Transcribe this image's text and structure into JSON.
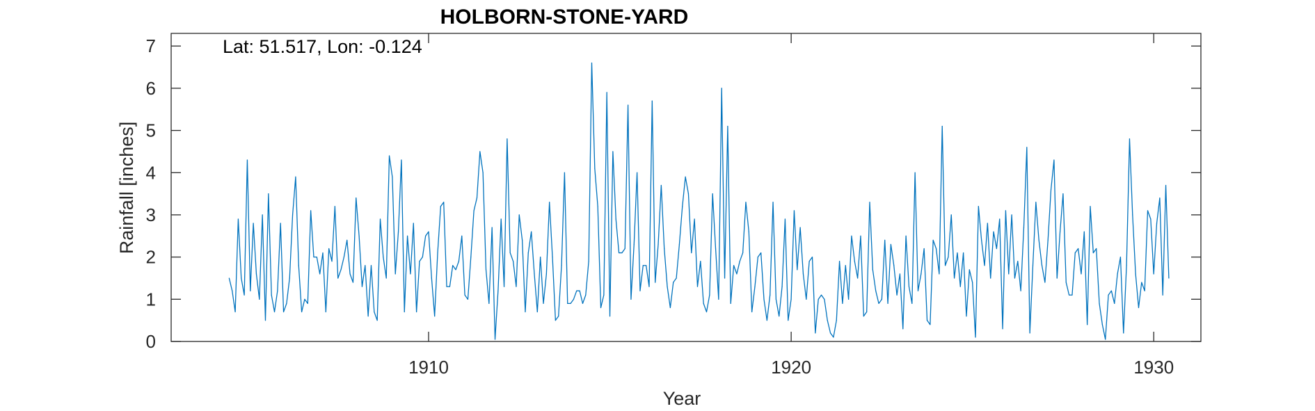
{
  "chart_data": {
    "type": "line",
    "title": "HOLBORN-STONE-YARD",
    "xlabel": "Year",
    "ylabel": "Rainfall [inches]",
    "annotation": "Lat: 51.517, Lon: -0.124",
    "xlim": [
      1902.9,
      1931.3
    ],
    "ylim": [
      0,
      7.3
    ],
    "x_ticks": [
      1910,
      1920,
      1930
    ],
    "y_ticks": [
      0,
      1,
      2,
      3,
      4,
      5,
      6,
      7
    ],
    "grid": false,
    "series_color": "#0072BD",
    "series": [
      {
        "x_start": 1904.5,
        "x_step": 0.08333,
        "values": [
          1.5,
          1.2,
          0.7,
          2.9,
          1.5,
          1.1,
          4.3,
          1.2,
          2.8,
          1.6,
          1.0,
          3.0,
          0.5,
          3.5,
          1.1,
          0.7,
          1.2,
          2.8,
          0.7,
          0.9,
          1.5,
          3.0,
          3.9,
          1.8,
          0.7,
          1.0,
          0.9,
          3.1,
          2.0,
          2.0,
          1.6,
          2.1,
          0.7,
          2.2,
          1.9,
          3.2,
          1.5,
          1.7,
          2.0,
          2.4,
          1.6,
          1.4,
          3.4,
          2.5,
          1.3,
          1.8,
          0.6,
          1.8,
          0.7,
          0.5,
          2.9,
          2.0,
          1.5,
          4.4,
          3.9,
          1.6,
          2.6,
          4.3,
          0.7,
          2.5,
          1.6,
          2.8,
          0.7,
          1.9,
          2.0,
          2.5,
          2.6,
          1.5,
          0.6,
          2.1,
          3.2,
          3.3,
          1.3,
          1.3,
          1.8,
          1.7,
          1.9,
          2.5,
          1.1,
          1.0,
          2.0,
          3.1,
          3.4,
          4.5,
          4.0,
          1.7,
          0.9,
          2.7,
          0.05,
          1.2,
          2.9,
          1.3,
          4.8,
          2.1,
          1.9,
          1.3,
          3.0,
          2.4,
          0.7,
          2.1,
          2.6,
          1.6,
          0.7,
          2.0,
          0.9,
          1.6,
          3.3,
          2.0,
          0.5,
          0.6,
          1.8,
          4.0,
          0.9,
          0.9,
          1.0,
          1.2,
          1.2,
          0.9,
          1.1,
          1.9,
          6.6,
          4.1,
          3.2,
          0.8,
          1.1,
          5.9,
          0.6,
          4.5,
          2.9,
          2.1,
          2.1,
          2.2,
          5.6,
          1.0,
          2.3,
          4.0,
          1.2,
          1.8,
          1.8,
          1.3,
          5.7,
          1.4,
          2.3,
          3.7,
          2.2,
          1.3,
          0.8,
          1.4,
          1.5,
          2.3,
          3.2,
          3.9,
          3.5,
          2.1,
          2.9,
          1.3,
          1.9,
          0.9,
          0.7,
          1.1,
          3.5,
          2.2,
          1.0,
          6.0,
          1.5,
          5.1,
          0.9,
          1.8,
          1.6,
          1.9,
          2.1,
          3.3,
          2.6,
          0.7,
          1.3,
          2.0,
          2.1,
          1.0,
          0.5,
          1.1,
          3.3,
          1.0,
          0.6,
          1.3,
          2.9,
          0.5,
          1.0,
          3.1,
          1.7,
          2.7,
          1.6,
          1.0,
          1.9,
          2.0,
          0.2,
          1.0,
          1.1,
          1.0,
          0.5,
          0.2,
          0.1,
          0.5,
          1.9,
          0.9,
          1.8,
          1.0,
          2.5,
          1.9,
          1.5,
          2.5,
          0.6,
          0.7,
          3.3,
          1.7,
          1.2,
          0.9,
          1.0,
          2.4,
          0.9,
          2.3,
          1.8,
          1.1,
          1.6,
          0.3,
          2.5,
          1.3,
          0.9,
          4.0,
          1.2,
          1.6,
          2.2,
          0.5,
          0.4,
          2.4,
          2.2,
          1.6,
          5.1,
          1.8,
          2.0,
          3.0,
          1.5,
          2.1,
          1.3,
          2.1,
          0.6,
          1.7,
          1.4,
          0.1,
          3.2,
          2.4,
          1.8,
          2.8,
          1.5,
          2.6,
          2.2,
          2.9,
          0.3,
          3.1,
          1.6,
          3.0,
          1.5,
          1.9,
          1.2,
          2.7,
          4.6,
          0.2,
          1.8,
          3.3,
          2.4,
          1.8,
          1.4,
          2.4,
          3.6,
          4.3,
          1.5,
          2.6,
          3.5,
          1.4,
          1.1,
          1.1,
          2.1,
          2.2,
          1.6,
          2.6,
          0.4,
          3.2,
          2.1,
          2.2,
          0.9,
          0.4,
          0.05,
          1.1,
          1.2,
          0.9,
          1.6,
          2.0,
          0.2,
          1.8,
          4.8,
          3.0,
          1.6,
          0.8,
          1.4,
          1.2,
          3.1,
          2.9,
          1.6,
          2.8,
          3.4,
          1.1,
          3.7,
          1.5
        ]
      }
    ]
  }
}
